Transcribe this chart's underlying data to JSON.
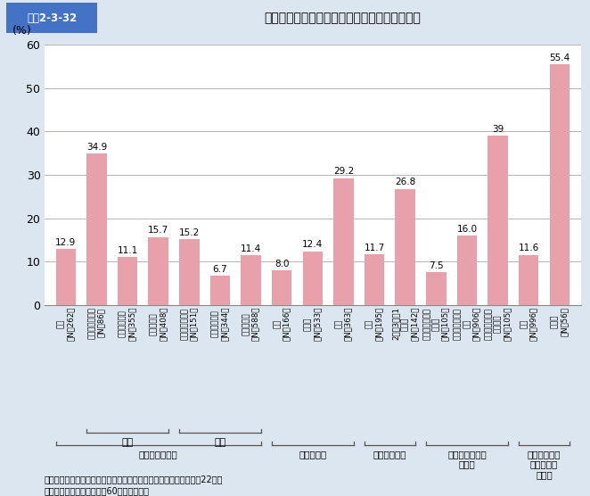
{
  "title_box_text": "図表2-3-32",
  "title_main": "状態別の「生きがいを感じていない人」の割合",
  "ylabel": "(%)",
  "ylim": [
    0,
    60
  ],
  "yticks": [
    0,
    10,
    20,
    30,
    40,
    50,
    60
  ],
  "bar_color": "#E8A0AA",
  "background_color": "#DCE6F0",
  "plot_bg_color": "#F0F4F8",
  "chart_bg_color": "#FFFFFF",
  "values": [
    12.9,
    34.9,
    11.1,
    15.7,
    15.2,
    6.7,
    11.4,
    8.0,
    12.4,
    29.2,
    11.7,
    26.8,
    7.5,
    16.0,
    39.0,
    11.6,
    55.4
  ],
  "value_labels": [
    "12.9",
    "34.9",
    "11.1",
    "15.7",
    "15.2",
    "6.7",
    "11.4",
    "8.0",
    "12.4",
    "29.2",
    "11.7",
    "26.8",
    "7.5",
    "16.0",
    "39",
    "11.6",
    "55.4"
  ],
  "bar_labels": [
    "全体\n（N＝262）",
    "一人暮らし世帯\n（N＝86）",
    "夫婦のみ世帯\n（N＝355）",
    "その他世帯\n（N＝408）",
    "一人暮らし世帯\n（N＝151）",
    "夫婦のみ世帯\n（N＝344）",
    "その他世帯\n（N＝588）",
    "良好\n（N＝166）",
    "ふつう\n（N＝533）",
    "不良\n（N＝363）",
    "毎日\n（N＝195）",
    "2日〜3日に1\n回以下\n（N＝142）",
    "親しくつきあっ\nている\n（N＝105）",
    "あいさつをする\n程度\n（N＝906）",
    "つきあいはほと\nんどない\n（N＝105）",
    "いる\n（N＝996）",
    "いない\n（N＝56）"
  ],
  "header_bg": "#4472C4",
  "header_text_color": "#FFFFFF",
  "source_line1": "資料：内閣府「高齢者の住宅と生活環境に関する意識調査」（平成22年）",
  "source_line2": "（注）　調査対象は、全国60歳以上の男女",
  "groups": [
    {
      "span": [
        0,
        6
      ],
      "label": "性・世帯構成別",
      "sub": [
        {
          "span": [
            1,
            3
          ],
          "label": "男性"
        },
        {
          "span": [
            4,
            6
          ],
          "label": "女性"
        }
      ]
    },
    {
      "span": [
        7,
        9
      ],
      "label": "健康状態別",
      "sub": []
    },
    {
      "span": [
        10,
        11
      ],
      "label": "会話の頻度別",
      "sub": []
    },
    {
      "span": [
        12,
        14
      ],
      "label": "近所づきあいの\n程度別",
      "sub": []
    },
    {
      "span": [
        15,
        16
      ],
      "label": "困ったときに\n頼れる人の\n有無別",
      "sub": []
    }
  ]
}
